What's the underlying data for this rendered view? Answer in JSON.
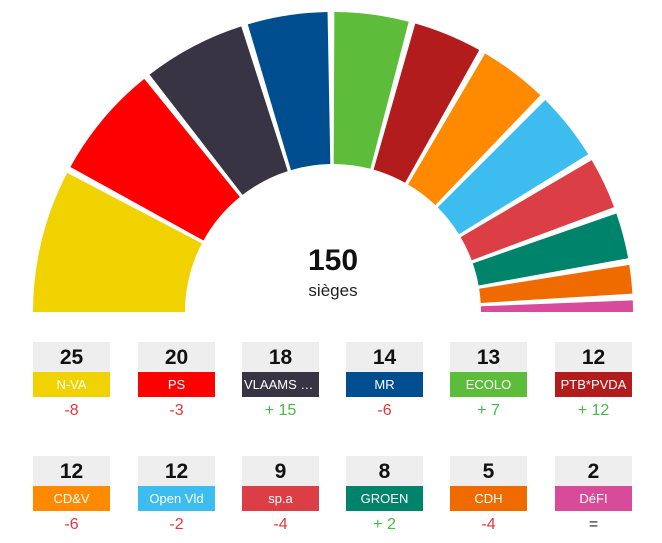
{
  "chart_data": {
    "type": "hemicycle",
    "total_seats": 150,
    "total_label": "sièges",
    "parties": [
      {
        "name": "N-VA",
        "seats": 25,
        "change": "-8",
        "color": "#f0d200"
      },
      {
        "name": "PS",
        "seats": 20,
        "change": "-3",
        "color": "#ff0000"
      },
      {
        "name": "VLAAMS BELANG",
        "display": "VLAAMS B…",
        "seats": 18,
        "change": "+ 15",
        "color": "#393443"
      },
      {
        "name": "MR",
        "seats": 14,
        "change": "-6",
        "color": "#004e8f"
      },
      {
        "name": "ECOLO",
        "seats": 13,
        "change": "+ 7",
        "color": "#5dbd3a"
      },
      {
        "name": "PTB*PVDA",
        "seats": 12,
        "change": "+ 12",
        "color": "#b31c1c"
      },
      {
        "name": "CD&V",
        "seats": 12,
        "change": "-6",
        "color": "#ff8a00"
      },
      {
        "name": "Open Vld",
        "seats": 12,
        "change": "-2",
        "color": "#3dbcf0"
      },
      {
        "name": "sp.a",
        "seats": 9,
        "change": "-4",
        "color": "#db3e45"
      },
      {
        "name": "GROEN",
        "seats": 8,
        "change": "+ 2",
        "color": "#00836b"
      },
      {
        "name": "CDH",
        "seats": 5,
        "change": "-4",
        "color": "#ef6b00"
      },
      {
        "name": "DéFI",
        "seats": 2,
        "change": "=",
        "color": "#d84a9a"
      }
    ]
  }
}
